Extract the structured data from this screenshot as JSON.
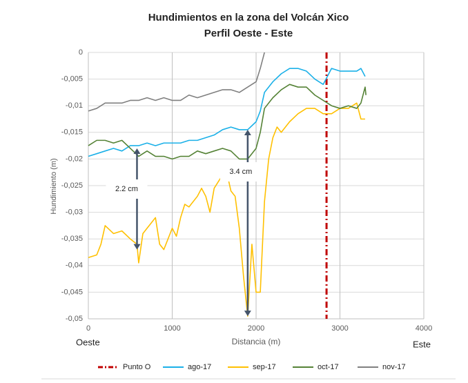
{
  "chart_data": {
    "type": "line",
    "title": "Hundimientos en la zona del Volcán Xico",
    "subtitle": "Perfil Oeste - Este",
    "xlabel": "Distancia (m)",
    "ylabel": "Hundimiento (m)",
    "xlim": [
      0,
      4000
    ],
    "xticks": [
      0,
      1000,
      2000,
      3000,
      4000
    ],
    "ylim": [
      -0.05,
      0
    ],
    "yticks": [
      0,
      {
        "value": -0.005,
        "label": "-0,005"
      },
      {
        "value": -0.01,
        "label": "-0,01"
      },
      {
        "value": -0.015,
        "label": "-0,015"
      },
      {
        "value": -0.02,
        "label": "-0,02"
      },
      {
        "value": -0.025,
        "label": "-0,025"
      },
      {
        "value": -0.03,
        "label": "-0,03"
      },
      {
        "value": -0.035,
        "label": "-0,035"
      },
      {
        "value": -0.04,
        "label": "-0,04"
      },
      {
        "value": -0.045,
        "label": "-0,045"
      },
      {
        "value": -0.05,
        "label": "-0,05"
      }
    ],
    "grid": true,
    "legend": "bottom",
    "side_labels": [
      "Oeste",
      "Este"
    ],
    "series": [
      {
        "name": "Punto O",
        "color": "#c00000",
        "linestyle": "dashdot",
        "x": [
          2840,
          2840
        ],
        "values": [
          0,
          -0.05
        ]
      },
      {
        "name": "ago-17",
        "color": "#1ab0e8",
        "x": [
          0,
          100,
          200,
          300,
          400,
          500,
          600,
          700,
          800,
          900,
          1000,
          1100,
          1200,
          1300,
          1400,
          1500,
          1600,
          1700,
          1800,
          1900,
          2000,
          2050,
          2100,
          2200,
          2300,
          2400,
          2500,
          2600,
          2700,
          2800,
          2900,
          3000,
          3100,
          3200,
          3250,
          3300
        ],
        "values": [
          -0.0195,
          -0.019,
          -0.0185,
          -0.018,
          -0.0185,
          -0.0175,
          -0.0175,
          -0.017,
          -0.0175,
          -0.017,
          -0.017,
          -0.017,
          -0.0165,
          -0.0165,
          -0.016,
          -0.0155,
          -0.0145,
          -0.014,
          -0.0145,
          -0.0145,
          -0.013,
          -0.011,
          -0.0075,
          -0.0055,
          -0.004,
          -0.003,
          -0.003,
          -0.0035,
          -0.005,
          -0.006,
          -0.003,
          -0.0035,
          -0.0035,
          -0.0035,
          -0.003,
          -0.0045
        ]
      },
      {
        "name": "sep-17",
        "color": "#ffc000",
        "x": [
          0,
          100,
          150,
          200,
          300,
          400,
          500,
          580,
          600,
          650,
          700,
          800,
          850,
          900,
          1000,
          1050,
          1100,
          1150,
          1200,
          1300,
          1350,
          1400,
          1450,
          1500,
          1600,
          1650,
          1700,
          1750,
          1800,
          1850,
          1900,
          1950,
          2000,
          2050,
          2100,
          2150,
          2200,
          2250,
          2300,
          2400,
          2500,
          2600,
          2700,
          2800,
          2900,
          3000,
          3100,
          3200,
          3250,
          3300
        ],
        "values": [
          -0.0385,
          -0.038,
          -0.036,
          -0.0325,
          -0.034,
          -0.0335,
          -0.035,
          -0.036,
          -0.0395,
          -0.034,
          -0.033,
          -0.031,
          -0.036,
          -0.037,
          -0.033,
          -0.0345,
          -0.031,
          -0.0285,
          -0.029,
          -0.027,
          -0.0255,
          -0.027,
          -0.03,
          -0.0255,
          -0.023,
          -0.0225,
          -0.026,
          -0.027,
          -0.033,
          -0.042,
          -0.0495,
          -0.036,
          -0.045,
          -0.045,
          -0.028,
          -0.02,
          -0.016,
          -0.014,
          -0.015,
          -0.013,
          -0.0115,
          -0.0105,
          -0.0105,
          -0.0115,
          -0.0115,
          -0.0105,
          -0.0105,
          -0.0095,
          -0.0125,
          -0.0125
        ]
      },
      {
        "name": "oct-17",
        "color": "#548235",
        "x": [
          0,
          100,
          200,
          300,
          400,
          500,
          600,
          700,
          800,
          900,
          1000,
          1100,
          1200,
          1300,
          1400,
          1500,
          1600,
          1700,
          1800,
          1900,
          2000,
          2050,
          2100,
          2200,
          2300,
          2400,
          2500,
          2600,
          2700,
          2800,
          2900,
          3000,
          3100,
          3200,
          3250,
          3300,
          3310
        ],
        "values": [
          -0.0175,
          -0.0165,
          -0.0165,
          -0.017,
          -0.0165,
          -0.018,
          -0.0195,
          -0.0185,
          -0.0195,
          -0.0195,
          -0.02,
          -0.0195,
          -0.0195,
          -0.0185,
          -0.019,
          -0.0185,
          -0.018,
          -0.0185,
          -0.02,
          -0.02,
          -0.018,
          -0.015,
          -0.0105,
          -0.0085,
          -0.007,
          -0.006,
          -0.0065,
          -0.0065,
          -0.008,
          -0.009,
          -0.01,
          -0.0105,
          -0.01,
          -0.0105,
          -0.0095,
          -0.0065,
          -0.008
        ]
      },
      {
        "name": "nov-17",
        "color": "#7f7f7f",
        "x": [
          0,
          100,
          200,
          300,
          400,
          500,
          600,
          700,
          800,
          900,
          1000,
          1100,
          1200,
          1300,
          1400,
          1500,
          1600,
          1700,
          1800,
          1900,
          2000,
          2050,
          2100
        ],
        "values": [
          -0.011,
          -0.0105,
          -0.0095,
          -0.0095,
          -0.0095,
          -0.009,
          -0.009,
          -0.0085,
          -0.009,
          -0.0085,
          -0.009,
          -0.009,
          -0.008,
          -0.0085,
          -0.008,
          -0.0075,
          -0.007,
          -0.007,
          -0.0075,
          -0.0065,
          -0.0055,
          -0.003,
          0
        ]
      }
    ],
    "annotations": [
      {
        "text": "2.2 cm",
        "x": 580,
        "y1": -0.018,
        "y2": -0.037
      },
      {
        "text": "3.4 cm",
        "x": 1900,
        "y1": -0.0145,
        "y2": -0.0495
      }
    ]
  }
}
